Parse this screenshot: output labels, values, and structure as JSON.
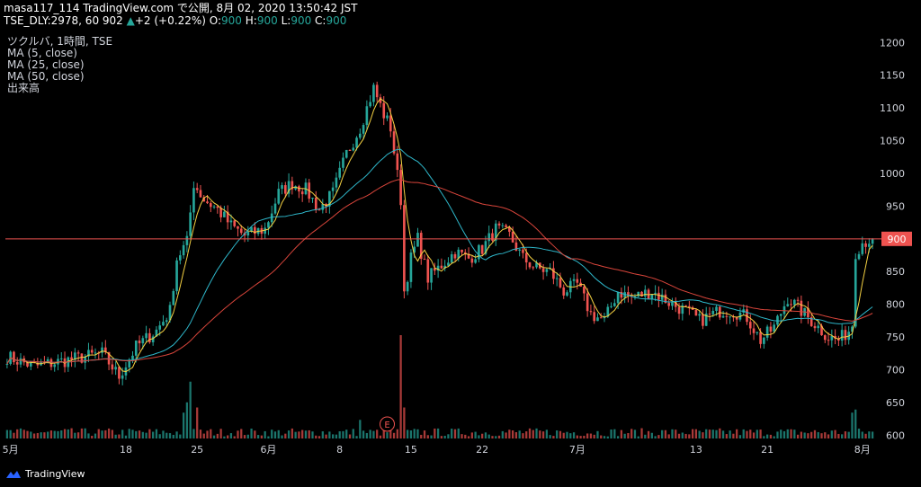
{
  "header": {
    "line1": "masa117_114 TradingView.com で公開, 8月 02, 2020 13:50:42 JST",
    "symbol": "TSE_DLY:2978, 60",
    "price": "902",
    "change_arrow": "▲",
    "change": "+2 (+0.22%)",
    "o_label": "O:",
    "o_value": "900",
    "h_label": "H:",
    "h_value": "900",
    "l_label": "L:",
    "l_value": "900",
    "c_label": "C:",
    "c_value": "900"
  },
  "legend": {
    "title": "ツクルバ, 1時間, TSE",
    "ma5": "MA (5, close)",
    "ma25": "MA (25, close)",
    "ma50": "MA (50, close)",
    "volume": "出来高"
  },
  "branding": {
    "name": "TradingView"
  },
  "colors": {
    "up": "#26a69a",
    "down": "#ef5350",
    "ma5": "#f5d142",
    "ma25": "#2eb6c9",
    "ma50": "#d9453b",
    "price_line": "#ef5350",
    "background": "#000000"
  },
  "chart_data": {
    "type": "candlestick",
    "y_axis": {
      "range": [
        595,
        1210
      ],
      "ticks": [
        600,
        650,
        700,
        750,
        800,
        850,
        900,
        950,
        1000,
        1050,
        1100,
        1150,
        1200
      ]
    },
    "x_axis": {
      "ticks": [
        {
          "label": "5月",
          "bar": 1
        },
        {
          "label": "18",
          "bar": 35
        },
        {
          "label": "25",
          "bar": 56
        },
        {
          "label": "6月",
          "bar": 77
        },
        {
          "label": "8",
          "bar": 98
        },
        {
          "label": "15",
          "bar": 119
        },
        {
          "label": "22",
          "bar": 140
        },
        {
          "label": "7月",
          "bar": 168
        },
        {
          "label": "13",
          "bar": 203
        },
        {
          "label": "21",
          "bar": 224
        },
        {
          "label": "8月",
          "bar": 252
        }
      ]
    },
    "last_price_label": "900",
    "last_price": 900,
    "marker": "E",
    "marker_bar": 112,
    "bar_count": 256,
    "close_anchors": [
      [
        0,
        720
      ],
      [
        8,
        705
      ],
      [
        18,
        715
      ],
      [
        28,
        725
      ],
      [
        33,
        690
      ],
      [
        38,
        735
      ],
      [
        44,
        760
      ],
      [
        48,
        790
      ],
      [
        50,
        870
      ],
      [
        53,
        895
      ],
      [
        55,
        985
      ],
      [
        58,
        960
      ],
      [
        62,
        945
      ],
      [
        66,
        920
      ],
      [
        70,
        905
      ],
      [
        76,
        915
      ],
      [
        80,
        970
      ],
      [
        84,
        985
      ],
      [
        88,
        975
      ],
      [
        92,
        945
      ],
      [
        96,
        970
      ],
      [
        100,
        1030
      ],
      [
        104,
        1070
      ],
      [
        108,
        1130
      ],
      [
        111,
        1090
      ],
      [
        113,
        1070
      ],
      [
        116,
        960
      ],
      [
        117,
        820
      ],
      [
        119,
        870
      ],
      [
        121,
        900
      ],
      [
        124,
        840
      ],
      [
        128,
        860
      ],
      [
        132,
        880
      ],
      [
        136,
        870
      ],
      [
        140,
        885
      ],
      [
        144,
        915
      ],
      [
        148,
        905
      ],
      [
        152,
        870
      ],
      [
        156,
        855
      ],
      [
        160,
        850
      ],
      [
        164,
        820
      ],
      [
        168,
        830
      ],
      [
        172,
        785
      ],
      [
        176,
        775
      ],
      [
        180,
        820
      ],
      [
        184,
        810
      ],
      [
        190,
        820
      ],
      [
        196,
        800
      ],
      [
        200,
        790
      ],
      [
        204,
        775
      ],
      [
        210,
        790
      ],
      [
        214,
        790
      ],
      [
        218,
        780
      ],
      [
        222,
        745
      ],
      [
        226,
        765
      ],
      [
        230,
        810
      ],
      [
        234,
        790
      ],
      [
        238,
        770
      ],
      [
        242,
        750
      ],
      [
        245,
        745
      ],
      [
        248,
        760
      ],
      [
        249,
        770
      ],
      [
        250,
        880
      ],
      [
        252,
        895
      ],
      [
        255,
        900
      ]
    ],
    "volume_spikes": [
      [
        52,
        0.25
      ],
      [
        53,
        0.35
      ],
      [
        54,
        0.55
      ],
      [
        56,
        0.3
      ],
      [
        104,
        0.18
      ],
      [
        116,
        1.0
      ],
      [
        117,
        0.3
      ],
      [
        249,
        0.25
      ],
      [
        250,
        0.28
      ]
    ]
  }
}
